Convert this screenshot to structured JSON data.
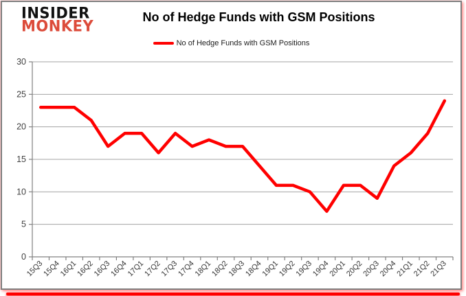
{
  "logo": {
    "line1": "INSIDER",
    "line2": "MONKEY"
  },
  "header": {
    "title": "No of Hedge Funds with GSM Positions"
  },
  "legend": {
    "label": "No of Hedge Funds with GSM Positions"
  },
  "colors": {
    "series_red": "#ff0000",
    "logo_red": "#dc4b3a",
    "logo_black": "#111111",
    "gridline": "#a3a3a3",
    "axis": "#808080",
    "tick_text": "#404040",
    "border_gray": "#7f7f7f"
  },
  "chart_data": {
    "type": "line",
    "title": "No of Hedge Funds with GSM Positions",
    "categories": [
      "15Q3",
      "15Q4",
      "16Q1",
      "16Q2",
      "16Q3",
      "16Q4",
      "17Q1",
      "17Q2",
      "17Q3",
      "17Q4",
      "18Q1",
      "18Q2",
      "18Q3",
      "18Q4",
      "19Q1",
      "19Q2",
      "19Q3",
      "19Q4",
      "20Q1",
      "20Q2",
      "20Q3",
      "20Q4",
      "21Q1",
      "21Q2",
      "21Q3"
    ],
    "series": [
      {
        "name": "No of Hedge Funds with GSM Positions",
        "color": "#ff0000",
        "values": [
          23,
          23,
          23,
          21,
          17,
          19,
          19,
          16,
          19,
          17,
          18,
          17,
          17,
          14,
          11,
          11,
          10,
          7,
          11,
          11,
          9,
          14,
          16,
          19,
          24
        ]
      }
    ],
    "xlabel": "",
    "ylabel": "",
    "ylim": [
      0,
      30
    ],
    "yticks": [
      0,
      5,
      10,
      15,
      20,
      25,
      30
    ],
    "grid": true,
    "legend_position": "top"
  }
}
